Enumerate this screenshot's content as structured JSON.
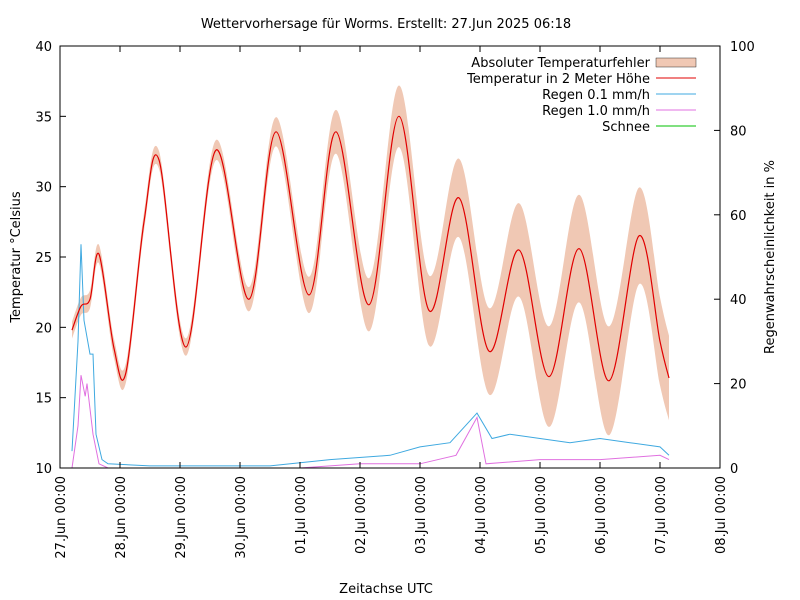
{
  "chart_data": {
    "type": "line",
    "title": "Wettervorhersage für Worms. Erstellt: 27.Jun 2025 06:18",
    "xlabel": "Zeitachse UTC",
    "ylabel_left": "Temperatur °Celsius",
    "ylabel_right": "Regenwahrscheinlichkeit in %",
    "x_unit": "days since 27.Jun 00:00 UTC",
    "xlim": [
      0,
      11
    ],
    "ylim_left": [
      10,
      40
    ],
    "ylim_right": [
      0,
      100
    ],
    "x_ticks": [
      {
        "value": 0,
        "label": "27.Jun 00:00"
      },
      {
        "value": 1,
        "label": "28.Jun 00:00"
      },
      {
        "value": 2,
        "label": "29.Jun 00:00"
      },
      {
        "value": 3,
        "label": "30.Jun 00:00"
      },
      {
        "value": 4,
        "label": "01.Jul 00:00"
      },
      {
        "value": 5,
        "label": "02.Jul 00:00"
      },
      {
        "value": 6,
        "label": "03.Jul 00:00"
      },
      {
        "value": 7,
        "label": "04.Jul 00:00"
      },
      {
        "value": 8,
        "label": "05.Jul 00:00"
      },
      {
        "value": 9,
        "label": "06.Jul 00:00"
      },
      {
        "value": 10,
        "label": "07.Jul 00:00"
      },
      {
        "value": 11,
        "label": "08.Jul 00:00"
      }
    ],
    "y_ticks_left": [
      10,
      15,
      20,
      25,
      30,
      35,
      40
    ],
    "y_ticks_right": [
      0,
      20,
      40,
      60,
      80,
      100
    ],
    "grid": false,
    "legend_position": "top-right",
    "legend": [
      {
        "name": "Absoluter Temperaturfehler",
        "kind": "band",
        "color": "#f0c8b4"
      },
      {
        "name": "Temperatur in 2 Meter Höhe",
        "kind": "line",
        "color": "#e00000"
      },
      {
        "name": "Regen 0.1 mm/h",
        "kind": "line",
        "color": "#3fa9e0"
      },
      {
        "name": "Regen 1.0 mm/h",
        "kind": "line",
        "color": "#e070e0"
      },
      {
        "name": "Schnee",
        "kind": "line",
        "color": "#00c000"
      }
    ],
    "temperature_keypoints": [
      {
        "x": 0.2,
        "y": 19.8
      },
      {
        "x": 0.35,
        "y": 21.5
      },
      {
        "x": 0.5,
        "y": 22.0
      },
      {
        "x": 0.65,
        "y": 25.2
      },
      {
        "x": 0.9,
        "y": 18.5
      },
      {
        "x": 1.1,
        "y": 16.8
      },
      {
        "x": 1.4,
        "y": 27.5
      },
      {
        "x": 1.65,
        "y": 31.9
      },
      {
        "x": 2.1,
        "y": 18.6
      },
      {
        "x": 2.6,
        "y": 32.6
      },
      {
        "x": 3.15,
        "y": 22.0
      },
      {
        "x": 3.6,
        "y": 33.9
      },
      {
        "x": 4.15,
        "y": 22.3
      },
      {
        "x": 4.6,
        "y": 33.9
      },
      {
        "x": 5.15,
        "y": 21.6
      },
      {
        "x": 5.65,
        "y": 35.0
      },
      {
        "x": 6.15,
        "y": 21.2
      },
      {
        "x": 6.65,
        "y": 29.2
      },
      {
        "x": 7.15,
        "y": 18.3
      },
      {
        "x": 7.65,
        "y": 25.5
      },
      {
        "x": 8.15,
        "y": 16.5
      },
      {
        "x": 8.65,
        "y": 25.6
      },
      {
        "x": 9.15,
        "y": 16.2
      },
      {
        "x": 9.65,
        "y": 26.5
      },
      {
        "x": 10.0,
        "y": 19.0
      },
      {
        "x": 10.15,
        "y": 16.4
      }
    ],
    "error_halfwidth_keypoints": [
      {
        "x": 0.2,
        "y": 0.6
      },
      {
        "x": 1.0,
        "y": 0.7
      },
      {
        "x": 2.0,
        "y": 0.6
      },
      {
        "x": 3.0,
        "y": 0.8
      },
      {
        "x": 4.0,
        "y": 1.2
      },
      {
        "x": 5.0,
        "y": 1.8
      },
      {
        "x": 6.0,
        "y": 2.4
      },
      {
        "x": 7.0,
        "y": 3.0
      },
      {
        "x": 8.0,
        "y": 3.5
      },
      {
        "x": 9.0,
        "y": 4.0
      },
      {
        "x": 10.15,
        "y": 3.0
      }
    ],
    "rain_01_keypoints": [
      {
        "x": 0.2,
        "y": 4
      },
      {
        "x": 0.3,
        "y": 30
      },
      {
        "x": 0.35,
        "y": 53
      },
      {
        "x": 0.4,
        "y": 35
      },
      {
        "x": 0.5,
        "y": 27
      },
      {
        "x": 0.55,
        "y": 27
      },
      {
        "x": 0.6,
        "y": 8
      },
      {
        "x": 0.7,
        "y": 2
      },
      {
        "x": 0.8,
        "y": 1
      },
      {
        "x": 1.5,
        "y": 0.5
      },
      {
        "x": 3.5,
        "y": 0.5
      },
      {
        "x": 4.5,
        "y": 2
      },
      {
        "x": 5.5,
        "y": 3
      },
      {
        "x": 6.0,
        "y": 5
      },
      {
        "x": 6.5,
        "y": 6
      },
      {
        "x": 6.95,
        "y": 13
      },
      {
        "x": 7.2,
        "y": 7
      },
      {
        "x": 7.5,
        "y": 8
      },
      {
        "x": 8.0,
        "y": 7
      },
      {
        "x": 8.5,
        "y": 6
      },
      {
        "x": 9.0,
        "y": 7
      },
      {
        "x": 9.5,
        "y": 6
      },
      {
        "x": 10.0,
        "y": 5
      },
      {
        "x": 10.15,
        "y": 3
      }
    ],
    "rain_10_keypoints": [
      {
        "x": 0.2,
        "y": 0
      },
      {
        "x": 0.3,
        "y": 10
      },
      {
        "x": 0.35,
        "y": 22
      },
      {
        "x": 0.42,
        "y": 17
      },
      {
        "x": 0.45,
        "y": 20
      },
      {
        "x": 0.55,
        "y": 8
      },
      {
        "x": 0.65,
        "y": 1
      },
      {
        "x": 0.8,
        "y": 0
      },
      {
        "x": 4.0,
        "y": 0
      },
      {
        "x": 5.0,
        "y": 1
      },
      {
        "x": 6.0,
        "y": 1
      },
      {
        "x": 6.6,
        "y": 3
      },
      {
        "x": 6.95,
        "y": 12
      },
      {
        "x": 7.1,
        "y": 1
      },
      {
        "x": 8.0,
        "y": 2
      },
      {
        "x": 9.0,
        "y": 2
      },
      {
        "x": 10.0,
        "y": 3
      },
      {
        "x": 10.15,
        "y": 2
      }
    ],
    "snow_values": [
      0
    ]
  }
}
